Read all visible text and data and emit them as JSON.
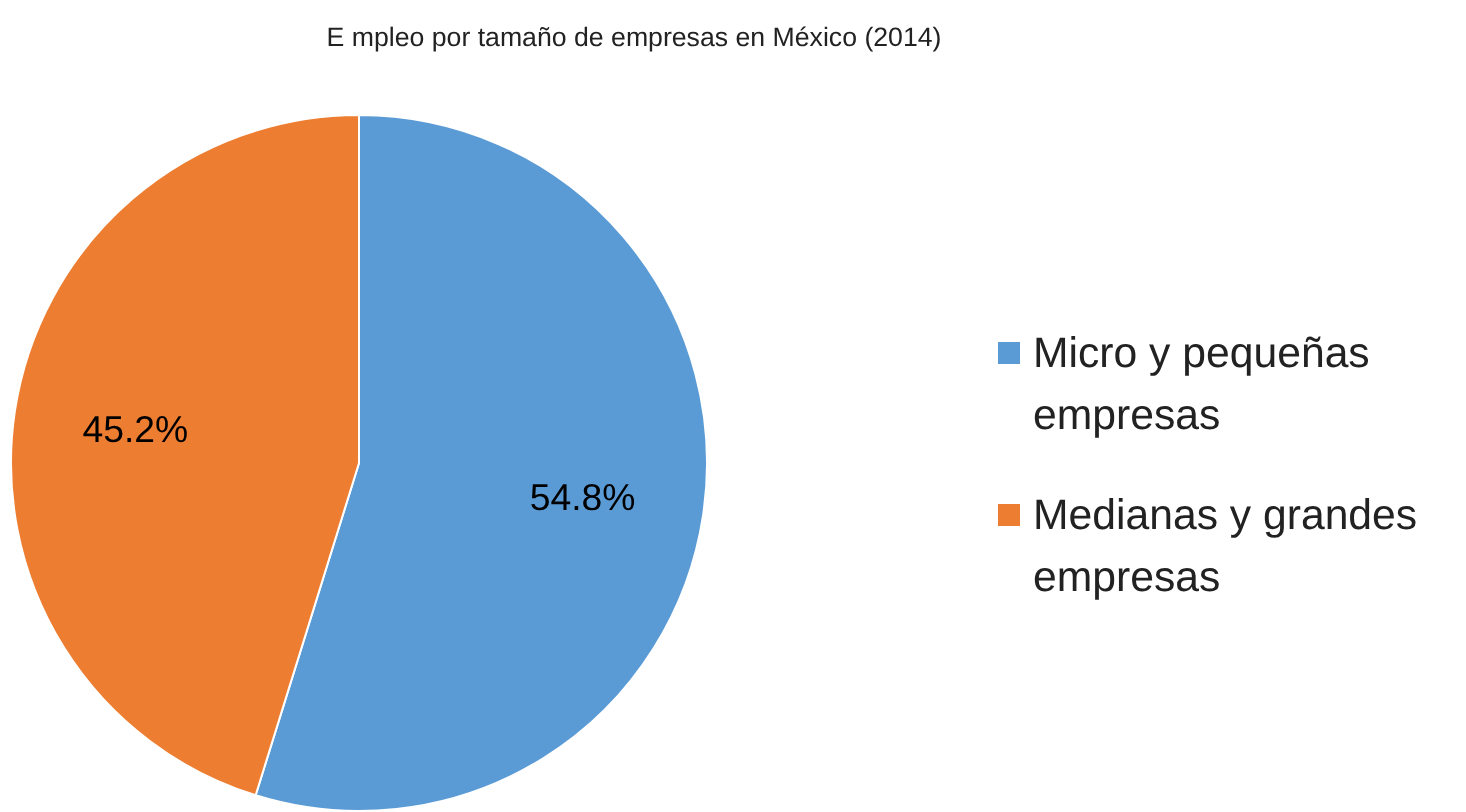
{
  "chart_data": {
    "type": "pie",
    "title": "E mpleo por tamaño de empresas en México (2014)",
    "categories": [
      "Micro y pequeñas empresas",
      "Medianas y grandes empresas"
    ],
    "values": [
      54.8,
      45.2
    ],
    "colors": [
      "#5b9bd5",
      "#ed7d31"
    ],
    "value_labels": [
      "54.8%",
      "45.2%"
    ],
    "legend": "right"
  }
}
